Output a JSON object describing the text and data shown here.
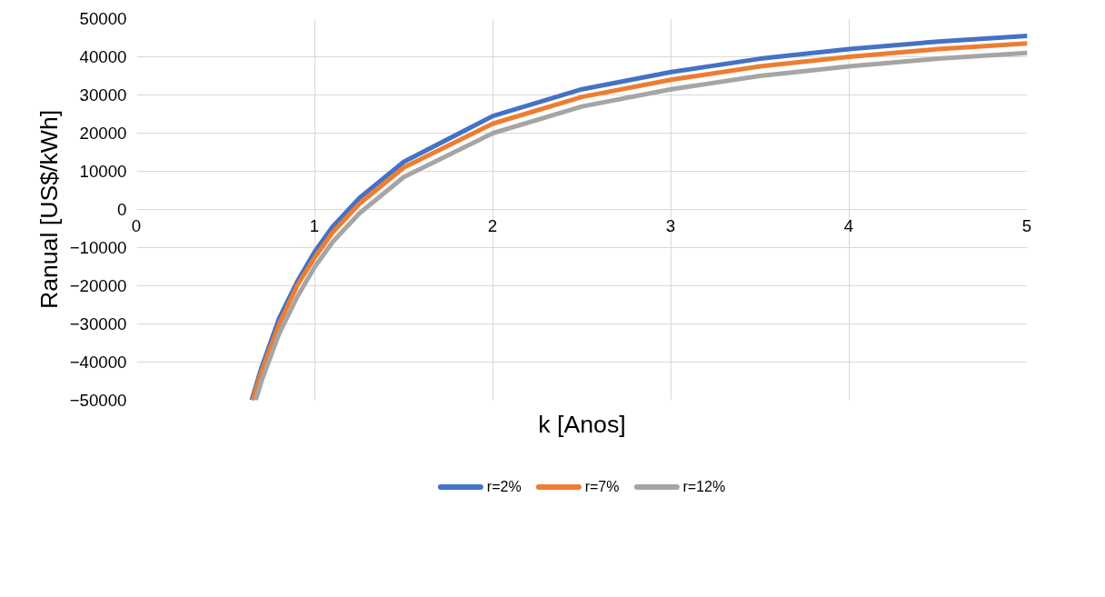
{
  "chart_data": {
    "type": "line",
    "xlabel": "k [Anos]",
    "ylabel": "Ranual [US$/kWh]",
    "xlim": [
      0,
      5
    ],
    "ylim": [
      -50000,
      50000
    ],
    "xticks": [
      0,
      1,
      2,
      3,
      4,
      5
    ],
    "yticks": [
      -50000,
      -40000,
      -30000,
      -20000,
      -10000,
      0,
      10000,
      20000,
      30000,
      40000,
      50000
    ],
    "grid": true,
    "legend": "bottom",
    "marker": "none",
    "line_style": "solid",
    "series": [
      {
        "name": "r=2%",
        "color": "#4472c4",
        "x": [
          0.645,
          0.7,
          0.8,
          0.9,
          1,
          1.1,
          1.25,
          1.5,
          2,
          2.5,
          3,
          3.5,
          4,
          4.5,
          5
        ],
        "values": [
          -50000,
          -41500,
          -28500,
          -19000,
          -11000,
          -4500,
          3000,
          12500,
          24500,
          31500,
          36000,
          39500,
          42000,
          44000,
          45500
        ]
      },
      {
        "name": "r=7%",
        "color": "#ed7d31",
        "x": [
          0.65,
          0.7,
          0.8,
          0.9,
          1,
          1.1,
          1.25,
          1.5,
          2,
          2.5,
          3,
          3.5,
          4,
          4.5,
          5
        ],
        "values": [
          -50000,
          -42500,
          -30000,
          -20000,
          -12500,
          -6000,
          1500,
          11000,
          22500,
          29500,
          34000,
          37500,
          40000,
          42000,
          43500
        ]
      },
      {
        "name": "r=12%",
        "color": "#a5a5a5",
        "x": [
          0.667,
          0.7,
          0.8,
          0.9,
          1,
          1.1,
          1.25,
          1.5,
          2,
          2.5,
          3,
          3.5,
          4,
          4.5,
          5
        ],
        "values": [
          -50000,
          -45000,
          -32500,
          -23000,
          -15000,
          -8500,
          -1000,
          8500,
          20000,
          27000,
          31500,
          35000,
          37500,
          39500,
          41000
        ]
      }
    ]
  }
}
